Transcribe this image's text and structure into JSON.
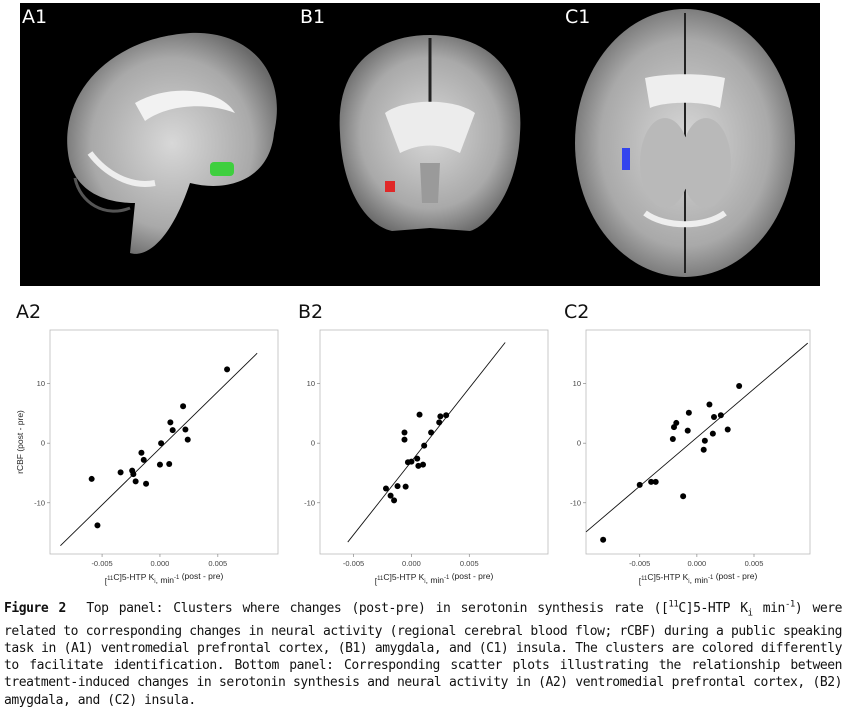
{
  "panels": {
    "top_labels": [
      "A1",
      "B1",
      "C1"
    ],
    "bottom_labels": [
      "A2",
      "B2",
      "C2"
    ]
  },
  "cluster_colors": {
    "A1": "#3ecf3e",
    "B1": "#e02828",
    "C1": "#3344ee"
  },
  "chart_data": [
    {
      "type": "scatter",
      "panel": "A2",
      "xlabel": "[11C]5-HTP Ki, min-1 (post - pre)",
      "ylabel": "rCBF (post - pre)",
      "x_ticks": [
        "-0.005",
        "0.000",
        "0.005"
      ],
      "y_ticks": [
        "10",
        "0",
        "-10"
      ],
      "xlim": [
        -0.0095,
        0.0102
      ],
      "ylim": [
        -18.6,
        19
      ],
      "points": [
        [
          -0.0059,
          -6.0
        ],
        [
          -0.0054,
          -13.8
        ],
        [
          -0.0034,
          -4.9
        ],
        [
          -0.0024,
          -4.6
        ],
        [
          -0.0023,
          -5.2
        ],
        [
          -0.0021,
          -6.4
        ],
        [
          -0.0016,
          -1.6
        ],
        [
          -0.0014,
          -2.8
        ],
        [
          -0.0012,
          -6.8
        ],
        [
          0.0,
          -3.6
        ],
        [
          0.0001,
          0.0
        ],
        [
          0.0008,
          -3.5
        ],
        [
          0.0009,
          3.5
        ],
        [
          0.0011,
          2.2
        ],
        [
          0.002,
          6.2
        ],
        [
          0.0022,
          2.3
        ],
        [
          0.0024,
          0.6
        ],
        [
          0.0058,
          12.4
        ]
      ],
      "fit_line": [
        [
          -0.0086,
          -17.2
        ],
        [
          0.0084,
          15.1
        ]
      ]
    },
    {
      "type": "scatter",
      "panel": "B2",
      "xlabel": "[11C]5-HTP Ki, min-1 (post - pre)",
      "ylabel": "",
      "x_ticks": [
        "-0.005",
        "0.000",
        "0.005"
      ],
      "y_ticks": [
        "10",
        "0",
        "-10"
      ],
      "xlim": [
        -0.0079,
        0.0118
      ],
      "ylim": [
        -18.6,
        19
      ],
      "points": [
        [
          -0.0022,
          -7.6
        ],
        [
          -0.0018,
          -8.8
        ],
        [
          -0.0015,
          -9.6
        ],
        [
          -0.0012,
          -7.2
        ],
        [
          -0.0006,
          0.6
        ],
        [
          -0.0006,
          1.8
        ],
        [
          -0.0005,
          -7.3
        ],
        [
          -0.0003,
          -3.2
        ],
        [
          0.0,
          -3.1
        ],
        [
          0.0005,
          -2.6
        ],
        [
          0.0006,
          -3.8
        ],
        [
          0.0007,
          4.8
        ],
        [
          0.001,
          -3.6
        ],
        [
          0.0011,
          -0.4
        ],
        [
          0.0017,
          1.8
        ],
        [
          0.0024,
          3.5
        ],
        [
          0.0025,
          4.5
        ],
        [
          0.003,
          4.7
        ]
      ],
      "fit_line": [
        [
          -0.0055,
          -16.6
        ],
        [
          0.0081,
          16.9
        ]
      ]
    },
    {
      "type": "scatter",
      "panel": "C2",
      "xlabel": "[11C]5-HTP Ki, min-1 (post - pre)",
      "ylabel": "",
      "x_ticks": [
        "-0.005",
        "0.000",
        "0.005"
      ],
      "y_ticks": [
        "10",
        "0",
        "-10"
      ],
      "xlim": [
        -0.0097,
        0.0099
      ],
      "ylim": [
        -18.6,
        19
      ],
      "points": [
        [
          -0.0082,
          -16.2
        ],
        [
          -0.005,
          -7.0
        ],
        [
          -0.004,
          -6.5
        ],
        [
          -0.0036,
          -6.5
        ],
        [
          -0.0021,
          0.7
        ],
        [
          -0.002,
          2.7
        ],
        [
          -0.0018,
          3.4
        ],
        [
          -0.0012,
          -8.9
        ],
        [
          -0.0008,
          2.1
        ],
        [
          -0.0007,
          5.1
        ],
        [
          0.0006,
          -1.1
        ],
        [
          0.0007,
          0.4
        ],
        [
          0.0011,
          6.5
        ],
        [
          0.0014,
          1.6
        ],
        [
          0.0015,
          4.4
        ],
        [
          0.0021,
          4.7
        ],
        [
          0.0027,
          2.3
        ],
        [
          0.0037,
          9.6
        ]
      ],
      "fit_line": [
        [
          -0.0097,
          -14.9
        ],
        [
          0.0097,
          16.8
        ]
      ]
    }
  ],
  "caption": {
    "fig_label": "Figure 2",
    "p1": "Top panel: Clusters where changes (post-pre) in serotonin synthesis rate ([",
    "sup1": "11",
    "p2": "C]5-HTP K",
    "sub1": "i",
    "p3": " min",
    "sup2": "-1",
    "p4": ") were related to corresponding changes in neural activity (regional cerebral blood flow; rCBF) during a public speaking task in (A1) ventromedial prefrontal cortex, (B1) amygdala, and (C1) insula. The clusters are colored differently to facilitate identification. Bottom panel: Corresponding scatter plots illustrating the relationship between treatment-induced changes in serotonin synthesis and neural activity in (A2) ventromedial prefrontal cortex, (B2) amygdala, and (C2) insula."
  }
}
